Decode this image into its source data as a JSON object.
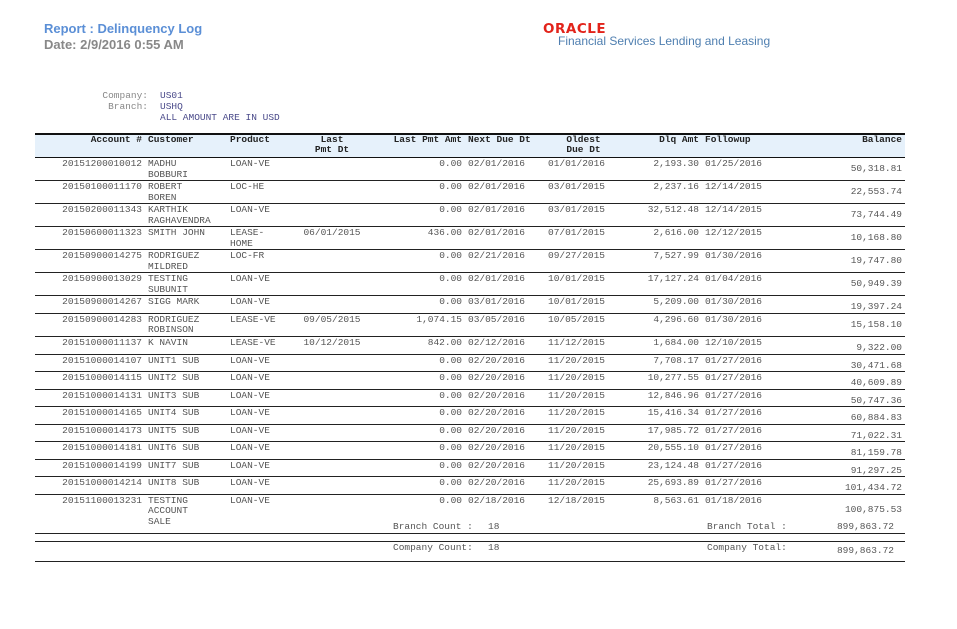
{
  "header": {
    "title": "Report : Delinquency Log",
    "date": "Date: 2/9/2016  0:55 AM",
    "logo": "ORACLE",
    "logo_subtitle": "Financial Services Lending and Leasing",
    "brand_color": "#e2231a"
  },
  "meta": {
    "company_label": "Company:",
    "company": "US01",
    "branch_label": "Branch:",
    "branch": "USHQ",
    "currency_note": "ALL AMOUNT ARE IN USD"
  },
  "columns": [
    "Account #",
    "Customer",
    "Product",
    "Last\nPmt Dt",
    "Last Pmt Amt",
    "Next Due Dt",
    "Oldest\nDue Dt",
    "Dlq Amt",
    "Followup",
    "Balance"
  ],
  "rows": [
    [
      "20151200010012",
      "MADHU\nBOBBURI",
      "LOAN-VE",
      "",
      "0.00",
      "02/01/2016",
      "01/01/2016",
      "2,193.30",
      "01/25/2016",
      "50,318.81"
    ],
    [
      "20150100011170",
      "ROBERT\nBOREN",
      "LOC-HE",
      "",
      "0.00",
      "02/01/2016",
      "03/01/2015",
      "2,237.16",
      "12/14/2015",
      "22,553.74"
    ],
    [
      "20150200011343",
      "KARTHIK\nRAGHAVENDRA",
      "LOAN-VE",
      "",
      "0.00",
      "02/01/2016",
      "03/01/2015",
      "32,512.48",
      "12/14/2015",
      "73,744.49"
    ],
    [
      "20150600011323",
      "SMITH JOHN",
      "LEASE-\nHOME",
      "06/01/2015",
      "436.00",
      "02/01/2016",
      "07/01/2015",
      "2,616.00",
      "12/12/2015",
      "10,168.80"
    ],
    [
      "20150900014275",
      "RODRIGUEZ\nMILDRED",
      "LOC-FR",
      "",
      "0.00",
      "02/21/2016",
      "09/27/2015",
      "7,527.99",
      "01/30/2016",
      "19,747.80"
    ],
    [
      "20150900013029",
      "TESTING\nSUBUNIT",
      "LOAN-VE",
      "",
      "0.00",
      "02/01/2016",
      "10/01/2015",
      "17,127.24",
      "01/04/2016",
      "50,949.39"
    ],
    [
      "20150900014267",
      "SIGG MARK",
      "LOAN-VE",
      "",
      "0.00",
      "03/01/2016",
      "10/01/2015",
      "5,209.00",
      "01/30/2016",
      "19,397.24"
    ],
    [
      "20150900014283",
      "RODRIGUEZ\nROBINSON",
      "LEASE-VE",
      "09/05/2015",
      "1,074.15",
      "03/05/2016",
      "10/05/2015",
      "4,296.60",
      "01/30/2016",
      "15,158.10"
    ],
    [
      "20151000011137",
      "K NAVIN",
      "LEASE-VE",
      "10/12/2015",
      "842.00",
      "02/12/2016",
      "11/12/2015",
      "1,684.00",
      "12/10/2015",
      "9,322.00"
    ],
    [
      "20151000014107",
      "UNIT1 SUB",
      "LOAN-VE",
      "",
      "0.00",
      "02/20/2016",
      "11/20/2015",
      "7,708.17",
      "01/27/2016",
      "30,471.68"
    ],
    [
      "20151000014115",
      "UNIT2 SUB",
      "LOAN-VE",
      "",
      "0.00",
      "02/20/2016",
      "11/20/2015",
      "10,277.55",
      "01/27/2016",
      "40,609.89"
    ],
    [
      "20151000014131",
      "UNIT3 SUB",
      "LOAN-VE",
      "",
      "0.00",
      "02/20/2016",
      "11/20/2015",
      "12,846.96",
      "01/27/2016",
      "50,747.36"
    ],
    [
      "20151000014165",
      "UNIT4 SUB",
      "LOAN-VE",
      "",
      "0.00",
      "02/20/2016",
      "11/20/2015",
      "15,416.34",
      "01/27/2016",
      "60,884.83"
    ],
    [
      "20151000014173",
      "UNIT5 SUB",
      "LOAN-VE",
      "",
      "0.00",
      "02/20/2016",
      "11/20/2015",
      "17,985.72",
      "01/27/2016",
      "71,022.31"
    ],
    [
      "20151000014181",
      "UNIT6 SUB",
      "LOAN-VE",
      "",
      "0.00",
      "02/20/2016",
      "11/20/2015",
      "20,555.10",
      "01/27/2016",
      "81,159.78"
    ],
    [
      "20151000014199",
      "UNIT7 SUB",
      "LOAN-VE",
      "",
      "0.00",
      "02/20/2016",
      "11/20/2015",
      "23,124.48",
      "01/27/2016",
      "91,297.25"
    ],
    [
      "20151000014214",
      "UNIT8 SUB",
      "LOAN-VE",
      "",
      "0.00",
      "02/20/2016",
      "11/20/2015",
      "25,693.89",
      "01/27/2016",
      "101,434.72"
    ],
    [
      "20151100013231",
      "TESTING\nACCOUNT\nSALE",
      "LOAN-VE",
      "",
      "0.00",
      "02/18/2016",
      "12/18/2015",
      "8,563.61",
      "01/18/2016",
      "100,875.53"
    ]
  ],
  "footer": {
    "branch_count_label": "Branch Count :",
    "branch_count": "18",
    "branch_total_label": "Branch Total :",
    "branch_total": "899,863.72",
    "company_count_label": "Company Count:",
    "company_count": "18",
    "company_total_label": "Company Total:",
    "company_total": "899,863.72"
  }
}
